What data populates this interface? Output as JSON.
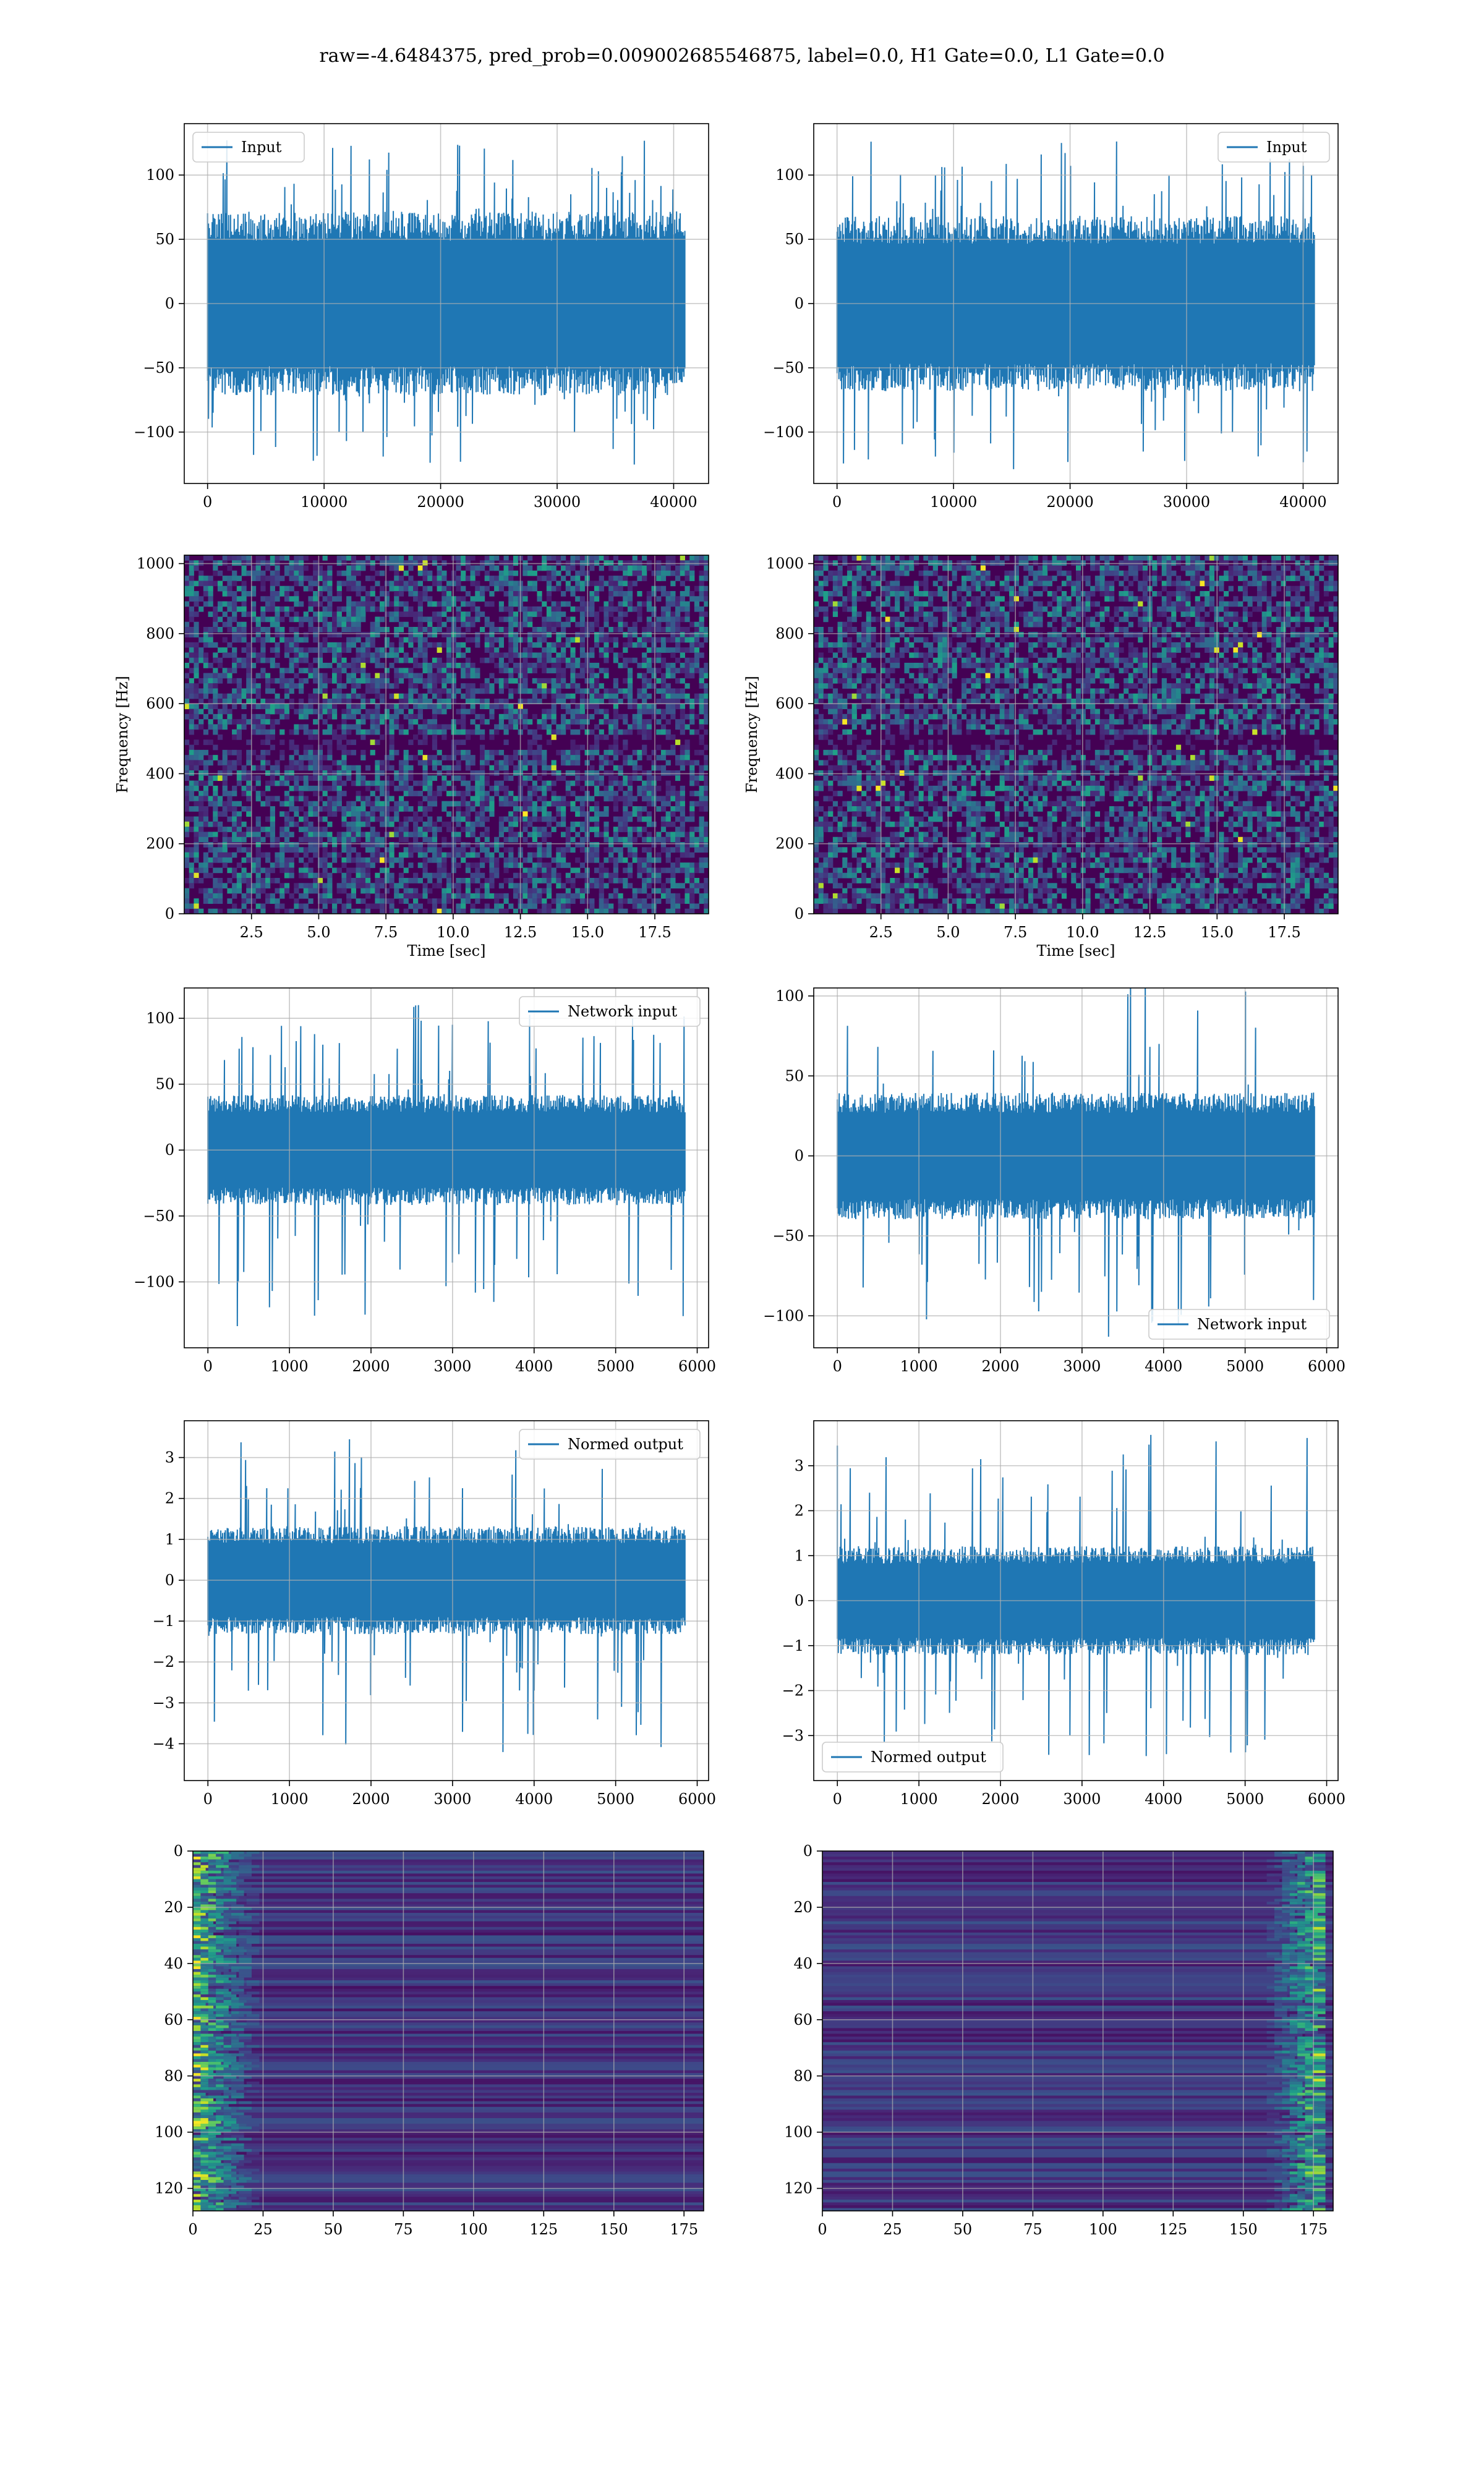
{
  "figure": {
    "suptitle": "raw=-4.6484375, pred_prob=0.009002685546875, label=0.0, H1 Gate=0.0, L1 Gate=0.0"
  },
  "colors": {
    "line": "#1f77b4",
    "grid": "#b0b0b0",
    "viridis_dark": "#440154"
  },
  "chart_data": [
    {
      "id": "input-h1",
      "type": "line",
      "panel": "r1c1",
      "legend": "Input",
      "legend_loc": "upper left",
      "xlim": [
        -2000,
        43000
      ],
      "ylim": [
        -140,
        140
      ],
      "xticks": [
        0,
        10000,
        20000,
        30000,
        40000
      ],
      "yticks": [
        -100,
        -50,
        0,
        50,
        100
      ],
      "xtick_labels": [
        "0",
        "10000",
        "20000",
        "30000",
        "40000"
      ],
      "ytick_labels": [
        "−100",
        "−50",
        "0",
        "50",
        "100"
      ],
      "series": [
        {
          "x_range": [
            0,
            40960
          ],
          "band": [
            -65,
            65
          ],
          "spike_max": 128,
          "spike_min": -128
        }
      ],
      "grid": true
    },
    {
      "id": "input-l1",
      "type": "line",
      "panel": "r1c2",
      "legend": "Input",
      "legend_loc": "upper right",
      "xlim": [
        -2000,
        43000
      ],
      "ylim": [
        -140,
        140
      ],
      "xticks": [
        0,
        10000,
        20000,
        30000,
        40000
      ],
      "yticks": [
        -100,
        -50,
        0,
        50,
        100
      ],
      "xtick_labels": [
        "0",
        "10000",
        "20000",
        "30000",
        "40000"
      ],
      "ytick_labels": [
        "−100",
        "−50",
        "0",
        "50",
        "100"
      ],
      "series": [
        {
          "x_range": [
            0,
            40960
          ],
          "band": [
            -62,
            62
          ],
          "spike_max": 127,
          "spike_min": -130
        }
      ],
      "grid": true
    },
    {
      "id": "spec-h1",
      "type": "heatmap",
      "panel": "r2c1",
      "xlabel": "Time [sec]",
      "ylabel": "Frequency [Hz]",
      "xlim": [
        0,
        19.5
      ],
      "ylim": [
        0,
        1024
      ],
      "xticks": [
        2.5,
        5.0,
        7.5,
        10.0,
        12.5,
        15.0,
        17.5
      ],
      "yticks": [
        0,
        200,
        400,
        600,
        800,
        1000
      ],
      "xtick_labels": [
        "2.5",
        "5.0",
        "7.5",
        "10.0",
        "12.5",
        "15.0",
        "17.5"
      ],
      "ytick_labels": [
        "0",
        "200",
        "400",
        "600",
        "800",
        "1000"
      ],
      "colormap": "viridis",
      "grid": true
    },
    {
      "id": "spec-l1",
      "type": "heatmap",
      "panel": "r2c2",
      "xlabel": "Time [sec]",
      "ylabel": "Frequency [Hz]",
      "xlim": [
        0,
        19.5
      ],
      "ylim": [
        0,
        1024
      ],
      "xticks": [
        2.5,
        5.0,
        7.5,
        10.0,
        12.5,
        15.0,
        17.5
      ],
      "yticks": [
        0,
        200,
        400,
        600,
        800,
        1000
      ],
      "xtick_labels": [
        "2.5",
        "5.0",
        "7.5",
        "10.0",
        "12.5",
        "15.0",
        "17.5"
      ],
      "ytick_labels": [
        "0",
        "200",
        "400",
        "600",
        "800",
        "1000"
      ],
      "colormap": "viridis",
      "grid": true
    },
    {
      "id": "network-input-h1",
      "type": "line",
      "panel": "r3c1",
      "legend": "Network input",
      "legend_loc": "upper right",
      "xlim": [
        -290,
        6140
      ],
      "ylim": [
        -150,
        123
      ],
      "xticks": [
        0,
        1000,
        2000,
        3000,
        4000,
        5000,
        6000
      ],
      "yticks": [
        -100,
        -50,
        0,
        50,
        100
      ],
      "xtick_labels": [
        "0",
        "1000",
        "2000",
        "3000",
        "4000",
        "5000",
        "6000"
      ],
      "ytick_labels": [
        "−100",
        "−50",
        "0",
        "50",
        "100"
      ],
      "series": [
        {
          "x_range": [
            0,
            5850
          ],
          "band": [
            -38,
            38
          ],
          "spike_max": 110,
          "spike_min": -135
        }
      ],
      "grid": true
    },
    {
      "id": "network-input-l1",
      "type": "line",
      "panel": "r3c2",
      "legend": "Network input",
      "legend_loc": "lower right",
      "xlim": [
        -290,
        6140
      ],
      "ylim": [
        -120,
        105
      ],
      "xticks": [
        0,
        1000,
        2000,
        3000,
        4000,
        5000,
        6000
      ],
      "yticks": [
        -100,
        -50,
        0,
        50,
        100
      ],
      "xtick_labels": [
        "0",
        "1000",
        "2000",
        "3000",
        "4000",
        "5000",
        "6000"
      ],
      "ytick_labels": [
        "−100",
        "−50",
        "0",
        "50",
        "100"
      ],
      "series": [
        {
          "x_range": [
            0,
            5850
          ],
          "band": [
            -36,
            36
          ],
          "spike_max": 112,
          "spike_min": -115
        }
      ],
      "grid": true
    },
    {
      "id": "normed-output-h1",
      "type": "line",
      "panel": "r4c1",
      "legend": "Normed output",
      "legend_loc": "upper right",
      "xlim": [
        -290,
        6140
      ],
      "ylim": [
        -4.9,
        3.9
      ],
      "xticks": [
        0,
        1000,
        2000,
        3000,
        4000,
        5000,
        6000
      ],
      "yticks": [
        -4,
        -3,
        -2,
        -1,
        0,
        1,
        2,
        3
      ],
      "xtick_labels": [
        "0",
        "1000",
        "2000",
        "3000",
        "4000",
        "5000",
        "6000"
      ],
      "ytick_labels": [
        "−4",
        "−3",
        "−2",
        "−1",
        "0",
        "1",
        "2",
        "3"
      ],
      "series": [
        {
          "x_range": [
            0,
            5850
          ],
          "band": [
            -1.2,
            1.2
          ],
          "spike_max": 3.6,
          "spike_min": -4.4
        }
      ],
      "grid": true
    },
    {
      "id": "normed-output-l1",
      "type": "line",
      "panel": "r4c2",
      "legend": "Normed output",
      "legend_loc": "lower left",
      "xlim": [
        -290,
        6140
      ],
      "ylim": [
        -4.0,
        4.0
      ],
      "xticks": [
        0,
        1000,
        2000,
        3000,
        4000,
        5000,
        6000
      ],
      "yticks": [
        -3,
        -2,
        -1,
        0,
        1,
        2,
        3
      ],
      "xtick_labels": [
        "0",
        "1000",
        "2000",
        "3000",
        "4000",
        "5000",
        "6000"
      ],
      "ytick_labels": [
        "−3",
        "−2",
        "−1",
        "0",
        "1",
        "2",
        "3"
      ],
      "series": [
        {
          "x_range": [
            0,
            5850
          ],
          "band": [
            -1.1,
            1.1
          ],
          "spike_max": 3.7,
          "spike_min": -3.6
        }
      ],
      "grid": true
    },
    {
      "id": "features-h1",
      "type": "heatmap",
      "panel": "r5c1",
      "xlim": [
        0,
        182
      ],
      "ylim": [
        128,
        0
      ],
      "xticks": [
        0,
        25,
        50,
        75,
        100,
        125,
        150,
        175
      ],
      "yticks": [
        0,
        20,
        40,
        60,
        80,
        100,
        120
      ],
      "xtick_labels": [
        "0",
        "25",
        "50",
        "75",
        "100",
        "125",
        "150",
        "175"
      ],
      "ytick_labels": [
        "0",
        "20",
        "40",
        "60",
        "80",
        "100",
        "120"
      ],
      "colormap": "viridis",
      "hot_side": "left",
      "grid": true
    },
    {
      "id": "features-l1",
      "type": "heatmap",
      "panel": "r5c2",
      "xlim": [
        0,
        182
      ],
      "ylim": [
        128,
        0
      ],
      "xticks": [
        0,
        25,
        50,
        75,
        100,
        125,
        150,
        175
      ],
      "yticks": [
        0,
        20,
        40,
        60,
        80,
        100,
        120
      ],
      "xtick_labels": [
        "0",
        "25",
        "50",
        "75",
        "100",
        "125",
        "150",
        "175"
      ],
      "ytick_labels": [
        "0",
        "20",
        "40",
        "60",
        "80",
        "100",
        "120"
      ],
      "colormap": "viridis",
      "hot_side": "right",
      "grid": true
    }
  ]
}
